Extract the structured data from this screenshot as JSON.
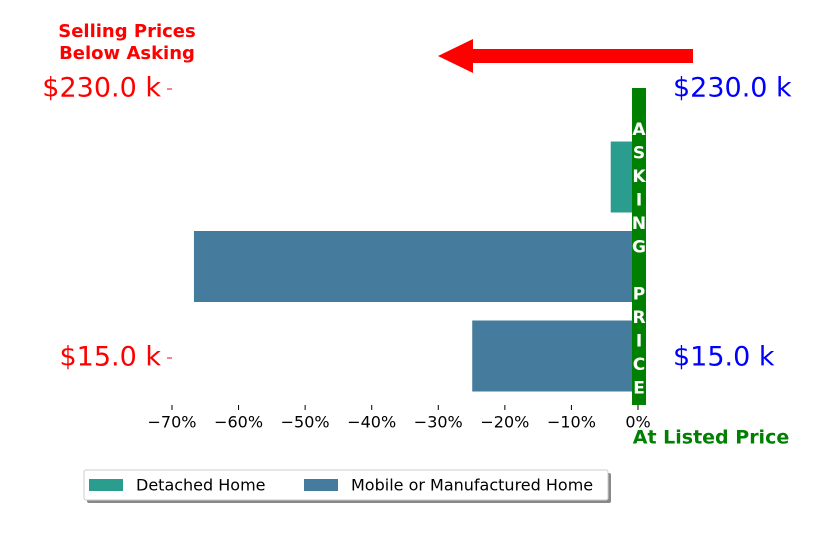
{
  "chart_data": {
    "type": "barh",
    "annotations": {
      "selling": [
        "Selling Prices",
        "Below Asking"
      ],
      "listed": "At Listed Price",
      "asking": "ASKING PRICE"
    },
    "left_labels": [
      "$230.0 k",
      "$15.0 k"
    ],
    "right_labels": [
      "$230.0 k",
      "$15.0 k"
    ],
    "series": [
      {
        "name": "Detached Home",
        "color": "#2a9d8f",
        "values": [
          -4.1,
          null,
          null
        ]
      },
      {
        "name": "Mobile or Manufactured Home",
        "color": "#457b9d",
        "values": [
          null,
          -66.7,
          -24.9
        ]
      }
    ],
    "xlim": [
      -73.3,
      1.2
    ],
    "xticks": [
      {
        "value": -70,
        "label": "−70%"
      },
      {
        "value": -60,
        "label": "−60%"
      },
      {
        "value": -50,
        "label": "−50%"
      },
      {
        "value": -40,
        "label": "−40%"
      },
      {
        "value": -30,
        "label": "−30%"
      },
      {
        "value": -20,
        "label": "−20%"
      },
      {
        "value": -10,
        "label": "−10%"
      },
      {
        "value": 0,
        "label": "0%"
      }
    ],
    "legend": "lower center",
    "marker_color": "#008000"
  }
}
